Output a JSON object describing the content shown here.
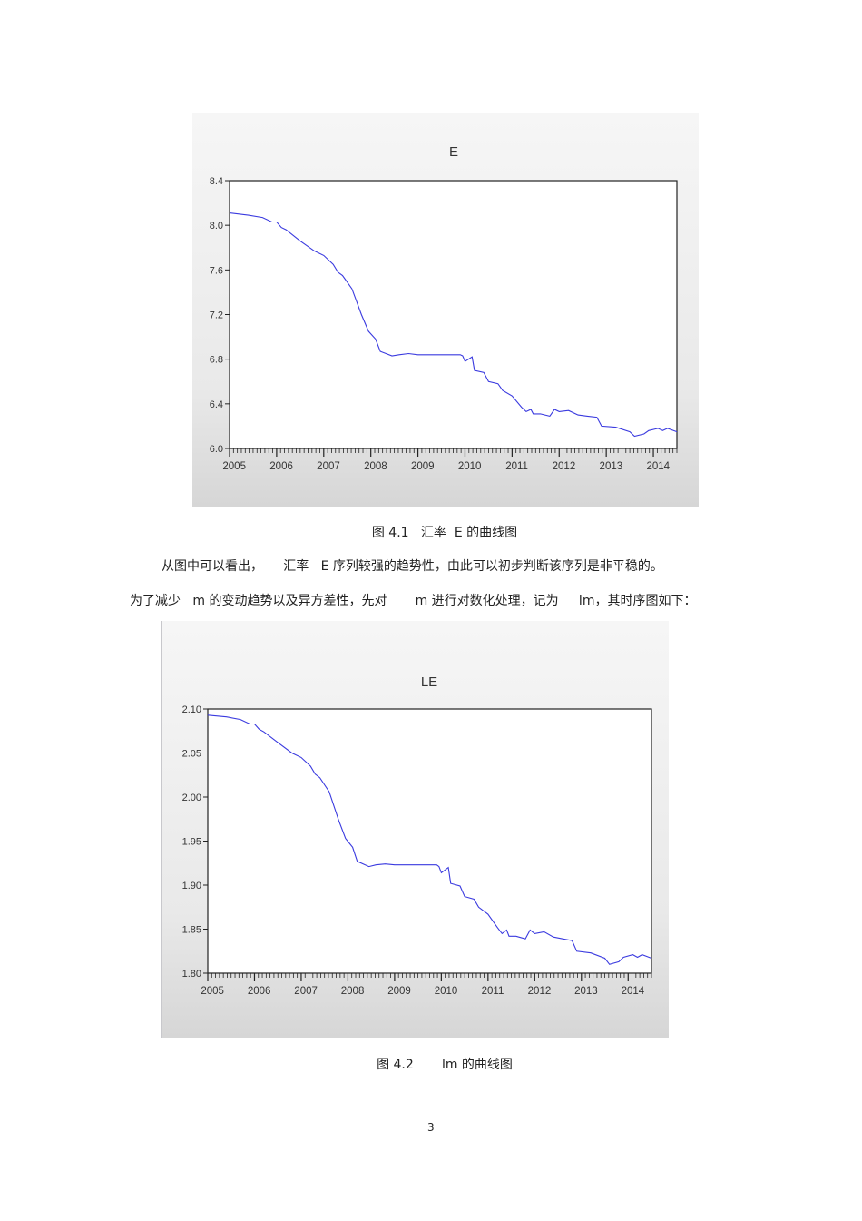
{
  "chart_data": [
    {
      "type": "line",
      "title": "E",
      "xlabel": "",
      "ylabel": "",
      "xlim": [
        2005,
        2014.5
      ],
      "ylim": [
        6.0,
        8.4
      ],
      "x_ticks": [
        "2005",
        "2006",
        "2007",
        "2008",
        "2009",
        "2010",
        "2011",
        "2012",
        "2013",
        "2014"
      ],
      "y_ticks": [
        "6.0",
        "6.4",
        "6.8",
        "7.2",
        "7.6",
        "8.0",
        "8.4"
      ],
      "grid": false,
      "line_color": "#3a3adf",
      "x": [
        2005.0,
        2005.4,
        2005.7,
        2005.9,
        2006.0,
        2006.1,
        2006.2,
        2006.5,
        2006.8,
        2007.0,
        2007.2,
        2007.3,
        2007.4,
        2007.6,
        2007.8,
        2007.95,
        2008.1,
        2008.2,
        2008.45,
        2008.6,
        2008.8,
        2009.0,
        2009.9,
        2009.95,
        2010.0,
        2010.15,
        2010.2,
        2010.4,
        2010.5,
        2010.7,
        2010.8,
        2011.0,
        2011.2,
        2011.3,
        2011.4,
        2011.45,
        2011.6,
        2011.8,
        2011.9,
        2012.0,
        2012.2,
        2012.4,
        2012.6,
        2012.8,
        2012.9,
        2013.2,
        2013.5,
        2013.6,
        2013.8,
        2013.9,
        2014.1,
        2014.2,
        2014.3,
        2014.5
      ],
      "values": [
        8.11,
        8.09,
        8.07,
        8.03,
        8.03,
        7.98,
        7.96,
        7.86,
        7.77,
        7.73,
        7.65,
        7.58,
        7.55,
        7.43,
        7.2,
        7.05,
        6.98,
        6.87,
        6.83,
        6.84,
        6.85,
        6.84,
        6.84,
        6.83,
        6.78,
        6.82,
        6.7,
        6.68,
        6.6,
        6.58,
        6.52,
        6.47,
        6.37,
        6.33,
        6.35,
        6.31,
        6.31,
        6.29,
        6.35,
        6.33,
        6.34,
        6.3,
        6.29,
        6.28,
        6.2,
        6.19,
        6.15,
        6.11,
        6.13,
        6.16,
        6.18,
        6.16,
        6.18,
        6.15
      ]
    },
    {
      "type": "line",
      "title": "LE",
      "xlabel": "",
      "ylabel": "",
      "xlim": [
        2005,
        2014.5
      ],
      "ylim": [
        1.8,
        2.1
      ],
      "x_ticks": [
        "2005",
        "2006",
        "2007",
        "2008",
        "2009",
        "2010",
        "2011",
        "2012",
        "2013",
        "2014"
      ],
      "y_ticks": [
        "1.80",
        "1.85",
        "1.90",
        "1.95",
        "2.00",
        "2.05",
        "2.10"
      ],
      "grid": false,
      "line_color": "#3a3adf",
      "x": [
        2005.0,
        2005.4,
        2005.7,
        2005.9,
        2006.0,
        2006.1,
        2006.2,
        2006.5,
        2006.8,
        2007.0,
        2007.2,
        2007.3,
        2007.4,
        2007.6,
        2007.8,
        2007.95,
        2008.1,
        2008.2,
        2008.45,
        2008.6,
        2008.8,
        2009.0,
        2009.9,
        2009.95,
        2010.0,
        2010.15,
        2010.2,
        2010.4,
        2010.5,
        2010.7,
        2010.8,
        2011.0,
        2011.2,
        2011.3,
        2011.4,
        2011.45,
        2011.6,
        2011.8,
        2011.9,
        2012.0,
        2012.2,
        2012.4,
        2012.6,
        2012.8,
        2012.9,
        2013.2,
        2013.5,
        2013.6,
        2013.8,
        2013.9,
        2014.1,
        2014.2,
        2014.3,
        2014.5
      ],
      "values": [
        2.093,
        2.091,
        2.088,
        2.083,
        2.083,
        2.077,
        2.074,
        2.062,
        2.05,
        2.045,
        2.035,
        2.026,
        2.022,
        2.006,
        1.974,
        1.953,
        1.943,
        1.927,
        1.921,
        1.923,
        1.924,
        1.923,
        1.923,
        1.921,
        1.914,
        1.92,
        1.902,
        1.899,
        1.887,
        1.884,
        1.875,
        1.867,
        1.852,
        1.845,
        1.849,
        1.842,
        1.842,
        1.839,
        1.849,
        1.845,
        1.847,
        1.841,
        1.839,
        1.837,
        1.825,
        1.823,
        1.817,
        1.81,
        1.813,
        1.818,
        1.821,
        1.818,
        1.821,
        1.817
      ]
    }
  ],
  "captions": {
    "fig1": "图 4.1   汇率  E 的曲线图",
    "fig2": "图 4.2       lm 的曲线图"
  },
  "paragraphs": [
    "从图中可以看出，     汇率   E 序列较强的趋势性，由此可以初步判断该序列是非平稳的。",
    "为了减少   m 的变动趋势以及异方差性，先对       m 进行对数化处理，记为     lm，其时序图如下："
  ],
  "page_number": "3"
}
